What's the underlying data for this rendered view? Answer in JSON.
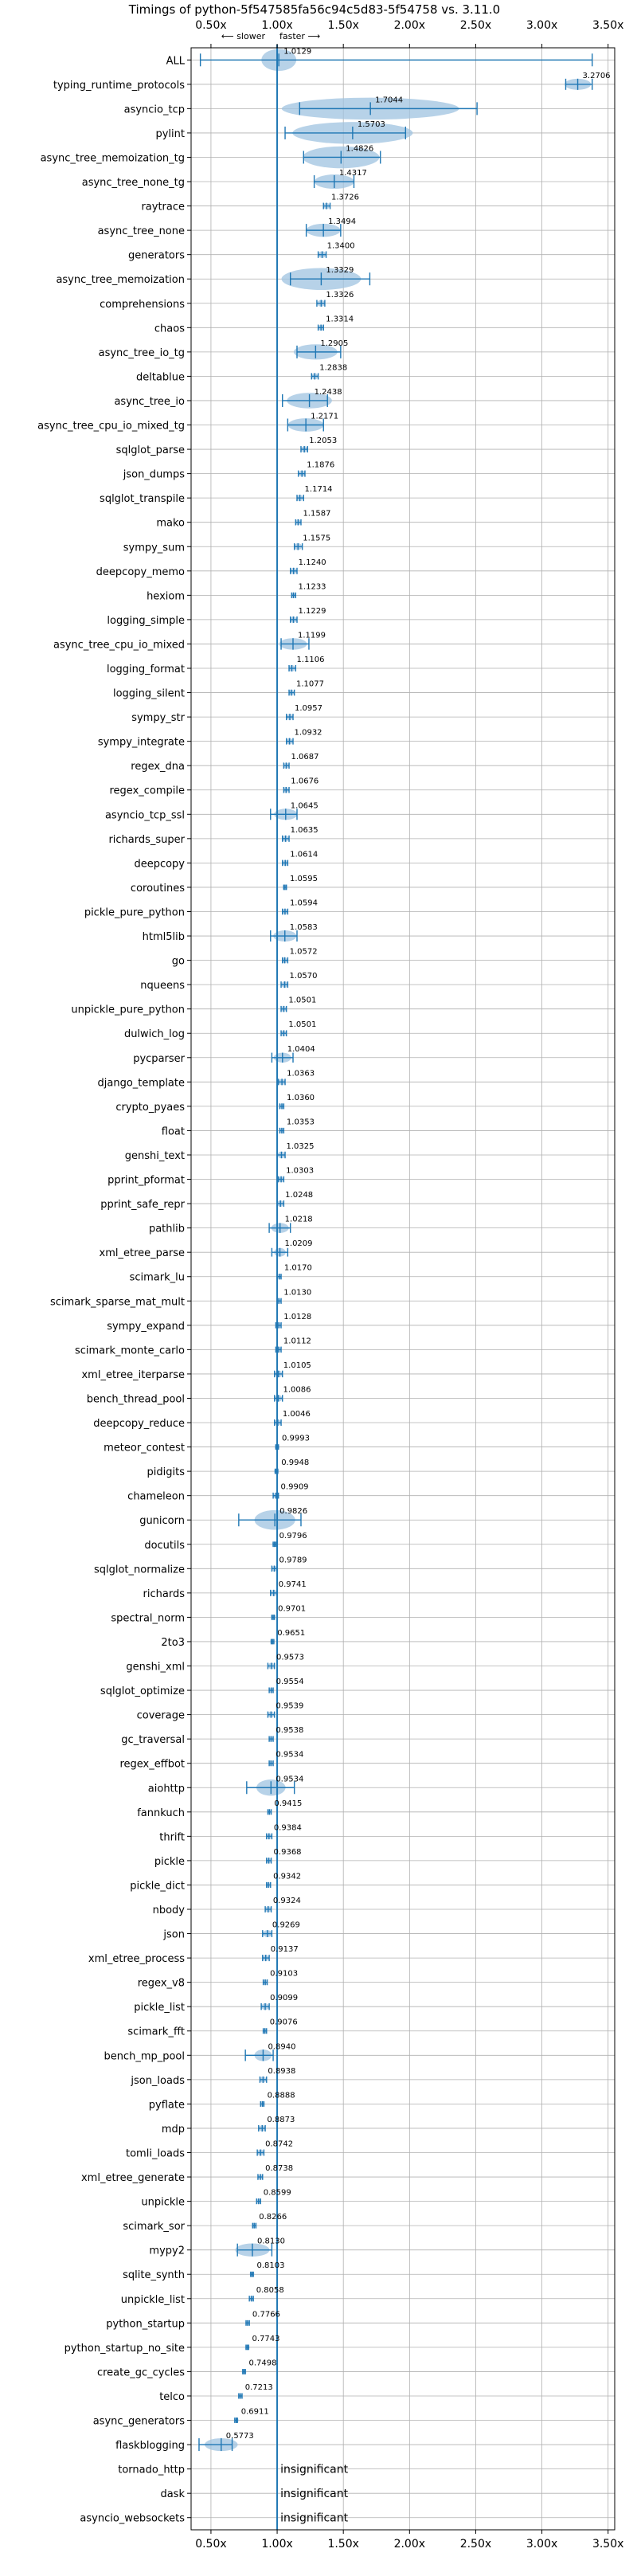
{
  "chart_data": {
    "type": "violin",
    "title": "Timings of python-5f547585fa56c94c5d83-5f54758 vs. 3.11.0",
    "direction": {
      "left": "⟵ slower",
      "right": "faster ⟶"
    },
    "xlim": [
      0.35,
      3.55
    ],
    "xticks": [
      0.5,
      1.0,
      1.5,
      2.0,
      2.5,
      3.0,
      3.5
    ],
    "xtick_labels": [
      "0.50x",
      "1.00x",
      "1.50x",
      "2.00x",
      "2.50x",
      "3.00x",
      "3.50x"
    ],
    "reference_line": 1.0,
    "grid": true,
    "colors": {
      "violin": "#9fc3e0",
      "line": "#1f77b4",
      "grid": "#b0b0b0"
    },
    "insignificant_label": "insignificant",
    "benchmarks": [
      {
        "name": "ALL",
        "value": 1.0129,
        "label": "1.0129",
        "min": 0.42,
        "max": 3.38,
        "spread": 0.06
      },
      {
        "name": "typing_runtime_protocols",
        "value": 3.2706,
        "label": "3.2706",
        "min": 3.18,
        "max": 3.38,
        "spread": 0.08
      },
      {
        "name": "asyncio_tcp",
        "value": 1.7044,
        "label": "1.7044",
        "min": 1.17,
        "max": 2.51,
        "spread": 0.35
      },
      {
        "name": "pylint",
        "value": 1.5703,
        "label": "1.5703",
        "min": 1.06,
        "max": 1.97,
        "spread": 0.25
      },
      {
        "name": "async_tree_memoization_tg",
        "value": 1.4826,
        "label": "1.4826",
        "min": 1.2,
        "max": 1.78,
        "spread": 0.15
      },
      {
        "name": "async_tree_none_tg",
        "value": 1.4317,
        "label": "1.4317",
        "min": 1.28,
        "max": 1.58,
        "spread": 0.12
      },
      {
        "name": "raytrace",
        "value": 1.3726,
        "label": "1.3726",
        "min": 1.35,
        "max": 1.4,
        "spread": 0.02
      },
      {
        "name": "async_tree_none",
        "value": 1.3494,
        "label": "1.3494",
        "min": 1.22,
        "max": 1.48,
        "spread": 0.1
      },
      {
        "name": "generators",
        "value": 1.34,
        "label": "1.3400",
        "min": 1.31,
        "max": 1.37,
        "spread": 0.02
      },
      {
        "name": "async_tree_memoization",
        "value": 1.3329,
        "label": "1.3329",
        "min": 1.1,
        "max": 1.7,
        "spread": 0.14
      },
      {
        "name": "comprehensions",
        "value": 1.3326,
        "label": "1.3326",
        "min": 1.3,
        "max": 1.36,
        "spread": 0.02
      },
      {
        "name": "chaos",
        "value": 1.3314,
        "label": "1.3314",
        "min": 1.31,
        "max": 1.35,
        "spread": 0.02
      },
      {
        "name": "async_tree_io_tg",
        "value": 1.2905,
        "label": "1.2905",
        "min": 1.15,
        "max": 1.48,
        "spread": 0.1
      },
      {
        "name": "deltablue",
        "value": 1.2838,
        "label": "1.2838",
        "min": 1.26,
        "max": 1.31,
        "spread": 0.02
      },
      {
        "name": "async_tree_io",
        "value": 1.2438,
        "label": "1.2438",
        "min": 1.04,
        "max": 1.38,
        "spread": 0.12
      },
      {
        "name": "async_tree_cpu_io_mixed_tg",
        "value": 1.2171,
        "label": "1.2171",
        "min": 1.08,
        "max": 1.35,
        "spread": 0.09
      },
      {
        "name": "sqlglot_parse",
        "value": 1.2053,
        "label": "1.2053",
        "min": 1.18,
        "max": 1.23,
        "spread": 0.02
      },
      {
        "name": "json_dumps",
        "value": 1.1876,
        "label": "1.1876",
        "min": 1.16,
        "max": 1.21,
        "spread": 0.02
      },
      {
        "name": "sqlglot_transpile",
        "value": 1.1714,
        "label": "1.1714",
        "min": 1.15,
        "max": 1.2,
        "spread": 0.02
      },
      {
        "name": "mako",
        "value": 1.1587,
        "label": "1.1587",
        "min": 1.14,
        "max": 1.18,
        "spread": 0.015
      },
      {
        "name": "sympy_sum",
        "value": 1.1575,
        "label": "1.1575",
        "min": 1.13,
        "max": 1.19,
        "spread": 0.02
      },
      {
        "name": "deepcopy_memo",
        "value": 1.124,
        "label": "1.1240",
        "min": 1.1,
        "max": 1.15,
        "spread": 0.02
      },
      {
        "name": "hexiom",
        "value": 1.1233,
        "label": "1.1233",
        "min": 1.11,
        "max": 1.14,
        "spread": 0.01
      },
      {
        "name": "logging_simple",
        "value": 1.1229,
        "label": "1.1229",
        "min": 1.1,
        "max": 1.15,
        "spread": 0.02
      },
      {
        "name": "async_tree_cpu_io_mixed",
        "value": 1.1199,
        "label": "1.1199",
        "min": 1.03,
        "max": 1.24,
        "spread": 0.06
      },
      {
        "name": "logging_format",
        "value": 1.1106,
        "label": "1.1106",
        "min": 1.09,
        "max": 1.14,
        "spread": 0.02
      },
      {
        "name": "logging_silent",
        "value": 1.1077,
        "label": "1.1077",
        "min": 1.09,
        "max": 1.13,
        "spread": 0.015
      },
      {
        "name": "sympy_str",
        "value": 1.0957,
        "label": "1.0957",
        "min": 1.07,
        "max": 1.12,
        "spread": 0.02
      },
      {
        "name": "sympy_integrate",
        "value": 1.0932,
        "label": "1.0932",
        "min": 1.07,
        "max": 1.12,
        "spread": 0.02
      },
      {
        "name": "regex_dna",
        "value": 1.0687,
        "label": "1.0687",
        "min": 1.05,
        "max": 1.09,
        "spread": 0.015
      },
      {
        "name": "regex_compile",
        "value": 1.0676,
        "label": "1.0676",
        "min": 1.05,
        "max": 1.09,
        "spread": 0.015
      },
      {
        "name": "asyncio_tcp_ssl",
        "value": 1.0645,
        "label": "1.0645",
        "min": 0.95,
        "max": 1.15,
        "spread": 0.04
      },
      {
        "name": "richards_super",
        "value": 1.0635,
        "label": "1.0635",
        "min": 1.04,
        "max": 1.09,
        "spread": 0.015
      },
      {
        "name": "deepcopy",
        "value": 1.0614,
        "label": "1.0614",
        "min": 1.04,
        "max": 1.08,
        "spread": 0.015
      },
      {
        "name": "coroutines",
        "value": 1.0595,
        "label": "1.0595",
        "min": 1.05,
        "max": 1.07,
        "spread": 0.008
      },
      {
        "name": "pickle_pure_python",
        "value": 1.0594,
        "label": "1.0594",
        "min": 1.04,
        "max": 1.08,
        "spread": 0.015
      },
      {
        "name": "html5lib",
        "value": 1.0583,
        "label": "1.0583",
        "min": 0.95,
        "max": 1.15,
        "spread": 0.04
      },
      {
        "name": "go",
        "value": 1.0572,
        "label": "1.0572",
        "min": 1.04,
        "max": 1.08,
        "spread": 0.01
      },
      {
        "name": "nqueens",
        "value": 1.057,
        "label": "1.0570",
        "min": 1.03,
        "max": 1.08,
        "spread": 0.015
      },
      {
        "name": "unpickle_pure_python",
        "value": 1.0501,
        "label": "1.0501",
        "min": 1.03,
        "max": 1.07,
        "spread": 0.015
      },
      {
        "name": "dulwich_log",
        "value": 1.0501,
        "label": "1.0501",
        "min": 1.03,
        "max": 1.07,
        "spread": 0.015
      },
      {
        "name": "pycparser",
        "value": 1.0404,
        "label": "1.0404",
        "min": 0.96,
        "max": 1.12,
        "spread": 0.03
      },
      {
        "name": "django_template",
        "value": 1.0363,
        "label": "1.0363",
        "min": 1.01,
        "max": 1.06,
        "spread": 0.015
      },
      {
        "name": "crypto_pyaes",
        "value": 1.036,
        "label": "1.0360",
        "min": 1.02,
        "max": 1.05,
        "spread": 0.01
      },
      {
        "name": "float",
        "value": 1.0353,
        "label": "1.0353",
        "min": 1.02,
        "max": 1.05,
        "spread": 0.01
      },
      {
        "name": "genshi_text",
        "value": 1.0325,
        "label": "1.0325",
        "min": 1.0,
        "max": 1.06,
        "spread": 0.02
      },
      {
        "name": "pprint_pformat",
        "value": 1.0303,
        "label": "1.0303",
        "min": 1.01,
        "max": 1.05,
        "spread": 0.01
      },
      {
        "name": "pprint_safe_repr",
        "value": 1.0248,
        "label": "1.0248",
        "min": 1.0,
        "max": 1.05,
        "spread": 0.015
      },
      {
        "name": "pathlib",
        "value": 1.0218,
        "label": "1.0218",
        "min": 0.94,
        "max": 1.1,
        "spread": 0.03
      },
      {
        "name": "xml_etree_parse",
        "value": 1.0209,
        "label": "1.0209",
        "min": 0.96,
        "max": 1.08,
        "spread": 0.02
      },
      {
        "name": "scimark_lu",
        "value": 1.017,
        "label": "1.0170",
        "min": 1.0,
        "max": 1.03,
        "spread": 0.01
      },
      {
        "name": "scimark_sparse_mat_mult",
        "value": 1.013,
        "label": "1.0130",
        "min": 1.0,
        "max": 1.03,
        "spread": 0.01
      },
      {
        "name": "sympy_expand",
        "value": 1.0128,
        "label": "1.0128",
        "min": 0.99,
        "max": 1.03,
        "spread": 0.015
      },
      {
        "name": "scimark_monte_carlo",
        "value": 1.0112,
        "label": "1.0112",
        "min": 0.99,
        "max": 1.03,
        "spread": 0.015
      },
      {
        "name": "xml_etree_iterparse",
        "value": 1.0105,
        "label": "1.0105",
        "min": 0.98,
        "max": 1.04,
        "spread": 0.02
      },
      {
        "name": "bench_thread_pool",
        "value": 1.0086,
        "label": "1.0086",
        "min": 0.98,
        "max": 1.04,
        "spread": 0.02
      },
      {
        "name": "deepcopy_reduce",
        "value": 1.0046,
        "label": "1.0046",
        "min": 0.98,
        "max": 1.03,
        "spread": 0.015
      },
      {
        "name": "meteor_contest",
        "value": 0.9993,
        "label": "0.9993",
        "min": 0.99,
        "max": 1.01,
        "spread": 0.008
      },
      {
        "name": "pidigits",
        "value": 0.9948,
        "label": "0.9948",
        "min": 0.985,
        "max": 1.005,
        "spread": 0.008
      },
      {
        "name": "chameleon",
        "value": 0.9909,
        "label": "0.9909",
        "min": 0.97,
        "max": 1.01,
        "spread": 0.01
      },
      {
        "name": "gunicorn",
        "value": 0.9826,
        "label": "0.9826",
        "min": 0.71,
        "max": 1.18,
        "spread": 0.07
      },
      {
        "name": "docutils",
        "value": 0.9796,
        "label": "0.9796",
        "min": 0.97,
        "max": 0.99,
        "spread": 0.008
      },
      {
        "name": "sqlglot_normalize",
        "value": 0.9789,
        "label": "0.9789",
        "min": 0.96,
        "max": 1.0,
        "spread": 0.01
      },
      {
        "name": "richards",
        "value": 0.9741,
        "label": "0.9741",
        "min": 0.95,
        "max": 1.0,
        "spread": 0.015
      },
      {
        "name": "spectral_norm",
        "value": 0.9701,
        "label": "0.9701",
        "min": 0.96,
        "max": 0.98,
        "spread": 0.008
      },
      {
        "name": "2to3",
        "value": 0.9651,
        "label": "0.9651",
        "min": 0.955,
        "max": 0.975,
        "spread": 0.008
      },
      {
        "name": "genshi_xml",
        "value": 0.9573,
        "label": "0.9573",
        "min": 0.93,
        "max": 0.98,
        "spread": 0.015
      },
      {
        "name": "sqlglot_optimize",
        "value": 0.9554,
        "label": "0.9554",
        "min": 0.94,
        "max": 0.97,
        "spread": 0.01
      },
      {
        "name": "coverage",
        "value": 0.9539,
        "label": "0.9539",
        "min": 0.93,
        "max": 0.98,
        "spread": 0.015
      },
      {
        "name": "gc_traversal",
        "value": 0.9538,
        "label": "0.9538",
        "min": 0.94,
        "max": 0.97,
        "spread": 0.01
      },
      {
        "name": "regex_effbot",
        "value": 0.9534,
        "label": "0.9534",
        "min": 0.94,
        "max": 0.97,
        "spread": 0.01
      },
      {
        "name": "aiohttp",
        "value": 0.9534,
        "label": "0.9534",
        "min": 0.77,
        "max": 1.13,
        "spread": 0.05
      },
      {
        "name": "fannkuch",
        "value": 0.9415,
        "label": "0.9415",
        "min": 0.93,
        "max": 0.955,
        "spread": 0.008
      },
      {
        "name": "thrift",
        "value": 0.9384,
        "label": "0.9384",
        "min": 0.92,
        "max": 0.96,
        "spread": 0.01
      },
      {
        "name": "pickle",
        "value": 0.9368,
        "label": "0.9368",
        "min": 0.92,
        "max": 0.955,
        "spread": 0.01
      },
      {
        "name": "pickle_dict",
        "value": 0.9342,
        "label": "0.9342",
        "min": 0.92,
        "max": 0.95,
        "spread": 0.01
      },
      {
        "name": "nbody",
        "value": 0.9324,
        "label": "0.9324",
        "min": 0.91,
        "max": 0.955,
        "spread": 0.012
      },
      {
        "name": "json",
        "value": 0.9269,
        "label": "0.9269",
        "min": 0.89,
        "max": 0.96,
        "spread": 0.02
      },
      {
        "name": "xml_etree_process",
        "value": 0.9137,
        "label": "0.9137",
        "min": 0.89,
        "max": 0.94,
        "spread": 0.015
      },
      {
        "name": "regex_v8",
        "value": 0.9103,
        "label": "0.9103",
        "min": 0.895,
        "max": 0.925,
        "spread": 0.01
      },
      {
        "name": "pickle_list",
        "value": 0.9099,
        "label": "0.9099",
        "min": 0.88,
        "max": 0.94,
        "spread": 0.02
      },
      {
        "name": "scimark_fft",
        "value": 0.9076,
        "label": "0.9076",
        "min": 0.895,
        "max": 0.92,
        "spread": 0.008
      },
      {
        "name": "bench_mp_pool",
        "value": 0.894,
        "label": "0.8940",
        "min": 0.76,
        "max": 0.97,
        "spread": 0.03
      },
      {
        "name": "json_loads",
        "value": 0.8938,
        "label": "0.8938",
        "min": 0.87,
        "max": 0.92,
        "spread": 0.015
      },
      {
        "name": "pyflate",
        "value": 0.8888,
        "label": "0.8888",
        "min": 0.875,
        "max": 0.9,
        "spread": 0.008
      },
      {
        "name": "mdp",
        "value": 0.8873,
        "label": "0.8873",
        "min": 0.86,
        "max": 0.91,
        "spread": 0.015
      },
      {
        "name": "tomli_loads",
        "value": 0.8742,
        "label": "0.8742",
        "min": 0.85,
        "max": 0.9,
        "spread": 0.015
      },
      {
        "name": "xml_etree_generate",
        "value": 0.8738,
        "label": "0.8738",
        "min": 0.855,
        "max": 0.89,
        "spread": 0.01
      },
      {
        "name": "unpickle",
        "value": 0.8599,
        "label": "0.8599",
        "min": 0.845,
        "max": 0.875,
        "spread": 0.008
      },
      {
        "name": "scimark_sor",
        "value": 0.8266,
        "label": "0.8266",
        "min": 0.815,
        "max": 0.84,
        "spread": 0.008
      },
      {
        "name": "mypy2",
        "value": 0.813,
        "label": "0.8130",
        "min": 0.7,
        "max": 0.96,
        "spread": 0.06
      },
      {
        "name": "sqlite_synth",
        "value": 0.8103,
        "label": "0.8103",
        "min": 0.8,
        "max": 0.82,
        "spread": 0.008
      },
      {
        "name": "unpickle_list",
        "value": 0.8058,
        "label": "0.8058",
        "min": 0.79,
        "max": 0.82,
        "spread": 0.01
      },
      {
        "name": "python_startup",
        "value": 0.7766,
        "label": "0.7766",
        "min": 0.765,
        "max": 0.79,
        "spread": 0.008
      },
      {
        "name": "python_startup_no_site",
        "value": 0.7743,
        "label": "0.7743",
        "min": 0.765,
        "max": 0.785,
        "spread": 0.008
      },
      {
        "name": "create_gc_cycles",
        "value": 0.7498,
        "label": "0.7498",
        "min": 0.74,
        "max": 0.76,
        "spread": 0.008
      },
      {
        "name": "telco",
        "value": 0.7213,
        "label": "0.7213",
        "min": 0.71,
        "max": 0.735,
        "spread": 0.008
      },
      {
        "name": "async_generators",
        "value": 0.6911,
        "label": "0.6911",
        "min": 0.68,
        "max": 0.7,
        "spread": 0.008
      },
      {
        "name": "flaskblogging",
        "value": 0.5773,
        "label": "0.5773",
        "min": 0.41,
        "max": 0.66,
        "spread": 0.09
      },
      {
        "name": "tornado_http",
        "value": null,
        "label": "insignificant",
        "min": null,
        "max": null,
        "spread": null
      },
      {
        "name": "dask",
        "value": null,
        "label": "insignificant",
        "min": null,
        "max": null,
        "spread": null
      },
      {
        "name": "asyncio_websockets",
        "value": null,
        "label": "insignificant",
        "min": null,
        "max": null,
        "spread": null
      }
    ]
  }
}
